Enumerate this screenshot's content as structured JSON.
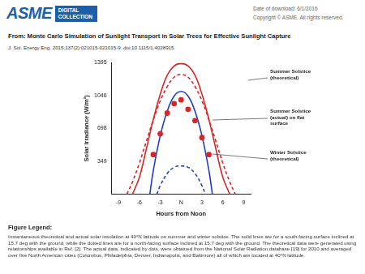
{
  "header": {
    "logo": "ASME",
    "logo_sub": "DIGITAL COLLECTION",
    "date": "Date of download: 6/1/2016",
    "copyright": "Copyright © ASME. All rights reserved.",
    "title": "From: Monte Carlo Simulation of Sunlight Transport in Solar Trees for Effective Sunlight Capture",
    "citation": "J. Sol. Energy Eng. 2015;137(2):021015-021015-9. doi:10.1115/1.4028915"
  },
  "chart_data": {
    "type": "line",
    "xlabel": "Hours from Noon",
    "ylabel": "Solar Irradiance (W/m²)",
    "xlim": [
      -10,
      10
    ],
    "xticks": [
      -9,
      -6,
      -3,
      {
        "value": 0,
        "label": "N"
      },
      3,
      6,
      9
    ],
    "ylim": [
      0,
      1395
    ],
    "yticks": [
      349,
      698,
      1046,
      1395
    ],
    "grid": false,
    "annotations": [
      "Summer Solstice (theoretical)",
      "Summer Solstice (actual) on flat surface",
      "Winter Solstice (theoretical)"
    ],
    "series": [
      {
        "color": "#d62728",
        "line_style": "solid",
        "marker": "none",
        "x": [
          -7,
          -6,
          -5,
          -4,
          -3,
          -2,
          -1,
          0,
          1,
          2,
          3,
          4,
          5,
          6,
          7
        ],
        "values": [
          0,
          180,
          480,
          790,
          1060,
          1260,
          1360,
          1385,
          1360,
          1260,
          1060,
          790,
          480,
          180,
          0
        ]
      },
      {
        "color": "#d62728",
        "line_style": "dashed",
        "marker": "none",
        "x": [
          -7.8,
          -7,
          -6,
          -5,
          -4,
          -3,
          -2,
          -1,
          0,
          1,
          2,
          3,
          4,
          5,
          6,
          7,
          7.8
        ],
        "values": [
          0,
          130,
          330,
          560,
          790,
          990,
          1140,
          1240,
          1270,
          1240,
          1140,
          990,
          790,
          560,
          330,
          130,
          0
        ]
      },
      {
        "color": "#d62728",
        "line_style": "none",
        "marker": "circle",
        "x": [
          -4,
          -3,
          -2,
          -1,
          0,
          1,
          2,
          3,
          4
        ],
        "values": [
          420,
          640,
          860,
          960,
          1000,
          900,
          780,
          600,
          420
        ]
      },
      {
        "color": "#1f3fbf",
        "line_style": "solid",
        "marker": "none",
        "x": [
          -4.5,
          -4,
          -3,
          -2,
          -1,
          0,
          1,
          2,
          3,
          4,
          4.5
        ],
        "values": [
          0,
          250,
          620,
          880,
          1040,
          1090,
          1040,
          880,
          620,
          250,
          0
        ]
      },
      {
        "color": "#1f3fbf",
        "line_style": "dashed",
        "marker": "none",
        "x": [
          -3.5,
          -3,
          -2,
          -1,
          0,
          1,
          2,
          3,
          3.5
        ],
        "values": [
          0,
          90,
          220,
          285,
          300,
          285,
          220,
          90,
          0
        ]
      }
    ]
  },
  "footer": {
    "heading": "Figure Legend:",
    "text": "Instantaneous theoretical and actual solar insolation at 40°N latitude on summer and winter solstice. The solid lines are for a south-facing surface inclined at 15.7 deg with the ground, while the dotted lines are for a north-facing surface inclined at 15.7 deg with the ground. The theoretical data were generated using relationships available in Ref. [2]. The actual data, indicated by dots, were obtained from the National Solar Radiation database [19] for 2010 and averaged over five North American cities (Columbus, Philadelphia, Denver, Indianapolis, and Baltimore) all of which are located at 40°N latitude."
  }
}
